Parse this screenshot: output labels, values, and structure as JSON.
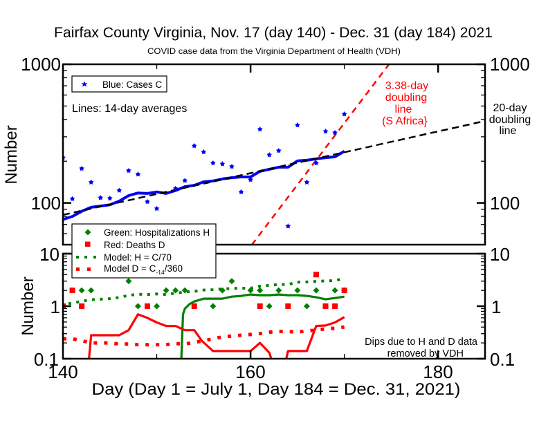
{
  "chart_data": {
    "type": "scatter",
    "title": "Fairfax County Virginia, Nov. 17 (day 140) - Dec. 31 (day 184) 2021",
    "subtitle": "COVID case data from the Virginia Department of Health (VDH)",
    "xlabel": "Day (Day 1 = July 1, Day 184 = Dec. 31, 2021)",
    "xlim": [
      140,
      185
    ],
    "x_ticks": [
      140,
      160,
      180
    ],
    "x_tick_labels": [
      "140",
      "160",
      "180"
    ],
    "x_minor_ticks": [
      150,
      170
    ],
    "grid": false,
    "colors": {
      "cases": "#0000ff",
      "hosp": "#008000",
      "deaths": "#ff0000",
      "doubling20": "#000000",
      "doubling338": "#ff0000"
    },
    "panels": [
      {
        "id": "cases",
        "ylabel": "Number",
        "yscale": "log",
        "ylim": [
          50,
          1000
        ],
        "y_ticks": [
          100,
          1000
        ],
        "y_tick_labels": [
          "100",
          "1000"
        ],
        "legend": {
          "position": "top-left",
          "entries": [
            {
              "label": "Blue: Cases C",
              "marker": "star"
            }
          ]
        },
        "note": "Lines: 14-day averages",
        "series": [
          {
            "name": "Cases C",
            "kind": "points",
            "points": [
              [
                140,
                212
              ],
              [
                141,
                107
              ],
              [
                142,
                177
              ],
              [
                143,
                141
              ],
              [
                144,
                109
              ],
              [
                145,
                108
              ],
              [
                146,
                123
              ],
              [
                147,
                171
              ],
              [
                148,
                161
              ],
              [
                149,
                102
              ],
              [
                150,
                91
              ],
              [
                152,
                127
              ],
              [
                153,
                145
              ],
              [
                154,
                258
              ],
              [
                155,
                233
              ],
              [
                156,
                194
              ],
              [
                157,
                191
              ],
              [
                158,
                183
              ],
              [
                159,
                120
              ],
              [
                160,
                147
              ],
              [
                161,
                340
              ],
              [
                162,
                222
              ],
              [
                163,
                238
              ],
              [
                164,
                68
              ],
              [
                165,
                364
              ],
              [
                166,
                141
              ],
              [
                167,
                194
              ],
              [
                168,
                328
              ],
              [
                169,
                321
              ],
              [
                170,
                437
              ]
            ]
          },
          {
            "name": "Cases C 14-day average",
            "kind": "line",
            "points": [
              [
                140,
                76
              ],
              [
                141,
                80
              ],
              [
                142,
                87
              ],
              [
                143,
                93
              ],
              [
                144,
                95
              ],
              [
                145,
                97
              ],
              [
                146,
                103
              ],
              [
                147,
                113
              ],
              [
                148,
                118
              ],
              [
                149,
                117
              ],
              [
                150,
                120
              ],
              [
                151,
                117
              ],
              [
                152,
                123
              ],
              [
                153,
                131
              ],
              [
                154,
                134
              ],
              [
                155,
                142
              ],
              [
                156,
                144
              ],
              [
                157,
                149
              ],
              [
                158,
                152
              ],
              [
                159,
                154
              ],
              [
                160,
                154
              ],
              [
                161,
                169
              ],
              [
                162,
                175
              ],
              [
                163,
                181
              ],
              [
                164,
                181
              ],
              [
                165,
                201
              ],
              [
                166,
                203
              ],
              [
                167,
                208
              ],
              [
                168,
                212
              ],
              [
                169,
                215
              ],
              [
                170,
                236
              ]
            ]
          }
        ],
        "doubling_lines": [
          {
            "id": "20day",
            "label_lines": [
              "20-day",
              "doubling",
              "line"
            ],
            "doubling_days": 20,
            "anchor_day": 140,
            "anchor_value": 82,
            "from_day": 140,
            "to_day": 185
          },
          {
            "id": "338day",
            "label_lines": [
              "3.38-day",
              "doubling",
              "line",
              "(S Africa}"
            ],
            "doubling_days": 3.38,
            "anchor_day": 160,
            "anchor_value": 48.5,
            "from_day": 158,
            "to_day": 176
          }
        ]
      },
      {
        "id": "hosp-deaths",
        "ylabel": "Number",
        "yscale": "log",
        "ylim": [
          0.1,
          10
        ],
        "y_ticks": [
          0.1,
          1,
          10
        ],
        "y_tick_labels": [
          "0.1",
          "1",
          "10"
        ],
        "legend": {
          "position": "top-left",
          "entries": [
            {
              "label": "Green: Hospitalizations H",
              "marker": "diamond"
            },
            {
              "label": "Red: Deaths D",
              "marker": "square"
            },
            {
              "label": "Model: H = C/70",
              "marker": "green-dots"
            },
            {
              "label_main": "Model D = C",
              "label_sub": "-14",
              "label_after": "/360",
              "marker": "red-dots"
            }
          ]
        },
        "annotation_lines": [
          "Dips due to H and D data",
          "removed by VDH"
        ],
        "series": [
          {
            "name": "Hospitalizations H",
            "kind": "points",
            "points": [
              [
                142,
                2
              ],
              [
                143,
                2
              ],
              [
                147,
                3
              ],
              [
                148,
                1
              ],
              [
                150,
                1
              ],
              [
                151,
                2
              ],
              [
                152,
                2
              ],
              [
                153,
                2
              ],
              [
                156,
                1
              ],
              [
                157,
                2
              ],
              [
                158,
                3
              ],
              [
                160,
                2
              ],
              [
                161,
                2
              ],
              [
                162,
                1
              ],
              [
                163,
                2
              ],
              [
                165,
                2
              ],
              [
                166,
                1
              ],
              [
                167,
                2
              ],
              [
                168,
                1
              ],
              [
                169,
                2
              ],
              [
                170,
                2
              ]
            ]
          },
          {
            "name": "Deaths D",
            "kind": "points",
            "points": [
              [
                140,
                1
              ],
              [
                141,
                2
              ],
              [
                142,
                1
              ],
              [
                149,
                1
              ],
              [
                154,
                1
              ],
              [
                161,
                1
              ],
              [
                164,
                1
              ],
              [
                167,
                4
              ],
              [
                168,
                1
              ],
              [
                169,
                1
              ],
              [
                170,
                2
              ]
            ]
          },
          {
            "name": "Hospitalizations H 14-day average",
            "kind": "line",
            "points": [
              [
                152.6,
                0.08
              ],
              [
                152.8,
                0.7
              ],
              [
                153,
                0.9
              ],
              [
                153.5,
                1.1
              ],
              [
                154,
                1.23
              ],
              [
                155,
                1.39
              ],
              [
                156,
                1.39
              ],
              [
                157,
                1.39
              ],
              [
                158,
                1.52
              ],
              [
                159,
                1.57
              ],
              [
                160,
                1.67
              ],
              [
                161,
                1.62
              ],
              [
                162,
                1.62
              ],
              [
                163,
                1.67
              ],
              [
                164,
                1.62
              ],
              [
                165,
                1.62
              ],
              [
                166,
                1.57
              ],
              [
                167,
                1.48
              ],
              [
                168,
                1.35
              ],
              [
                169,
                1.43
              ],
              [
                170,
                1.52
              ]
            ]
          },
          {
            "name": "Deaths D 14-day average",
            "kind": "line",
            "points": [
              [
                142.7,
                0.07
              ],
              [
                143,
                0.28
              ],
              [
                146,
                0.28
              ],
              [
                147,
                0.35
              ],
              [
                148,
                0.7
              ],
              [
                149,
                0.6
              ],
              [
                150,
                0.49
              ],
              [
                151,
                0.42
              ],
              [
                152,
                0.42
              ],
              [
                153,
                0.35
              ],
              [
                154,
                0.35
              ],
              [
                154.8,
                0.22
              ],
              [
                156,
                0.14
              ],
              [
                160,
                0.14
              ],
              [
                161,
                0.2
              ],
              [
                162,
                0.13
              ],
              [
                162.5,
                0.07
              ],
              [
                163.6,
                0.07
              ],
              [
                164,
                0.14
              ],
              [
                166,
                0.14
              ],
              [
                167,
                0.42
              ],
              [
                168,
                0.43
              ],
              [
                169,
                0.49
              ],
              [
                170,
                0.62
              ]
            ]
          },
          {
            "name": "Model: H = C/70",
            "kind": "dotted",
            "points": [
              [
                140,
                1.09
              ],
              [
                141,
                1.14
              ],
              [
                142,
                1.24
              ],
              [
                143,
                1.33
              ],
              [
                144,
                1.36
              ],
              [
                145,
                1.39
              ],
              [
                146,
                1.47
              ],
              [
                147,
                1.61
              ],
              [
                148,
                1.69
              ],
              [
                149,
                1.67
              ],
              [
                150,
                1.71
              ],
              [
                151,
                1.67
              ],
              [
                152,
                1.76
              ],
              [
                153,
                1.87
              ],
              [
                154,
                1.91
              ],
              [
                155,
                2.03
              ],
              [
                156,
                2.06
              ],
              [
                157,
                2.13
              ],
              [
                158,
                2.17
              ],
              [
                159,
                2.2
              ],
              [
                160,
                2.2
              ],
              [
                161,
                2.41
              ],
              [
                162,
                2.5
              ],
              [
                163,
                2.59
              ],
              [
                164,
                2.59
              ],
              [
                165,
                2.87
              ],
              [
                166,
                2.9
              ],
              [
                167,
                2.97
              ],
              [
                168,
                3.03
              ],
              [
                169,
                3.07
              ],
              [
                170,
                3.37
              ]
            ]
          },
          {
            "name": "Model D = C-14/360",
            "kind": "dotted",
            "points": [
              [
                140,
                0.24
              ],
              [
                141,
                0.24
              ],
              [
                142,
                0.22
              ],
              [
                143,
                0.2
              ],
              [
                144,
                0.2
              ],
              [
                145,
                0.2
              ],
              [
                146,
                0.19
              ],
              [
                147,
                0.19
              ],
              [
                148,
                0.185
              ],
              [
                149,
                0.185
              ],
              [
                150,
                0.185
              ],
              [
                151,
                0.185
              ],
              [
                152,
                0.195
              ],
              [
                153,
                0.19
              ],
              [
                154,
                0.205
              ],
              [
                155,
                0.22
              ],
              [
                156,
                0.24
              ],
              [
                157,
                0.26
              ],
              [
                158,
                0.27
              ],
              [
                159,
                0.28
              ],
              [
                160,
                0.29
              ],
              [
                161,
                0.3
              ],
              [
                162,
                0.32
              ],
              [
                163,
                0.33
              ],
              [
                164,
                0.33
              ],
              [
                165,
                0.32
              ],
              [
                166,
                0.34
              ],
              [
                167,
                0.35
              ],
              [
                168,
                0.37
              ],
              [
                169,
                0.38
              ],
              [
                170,
                0.4
              ]
            ]
          }
        ]
      }
    ]
  }
}
